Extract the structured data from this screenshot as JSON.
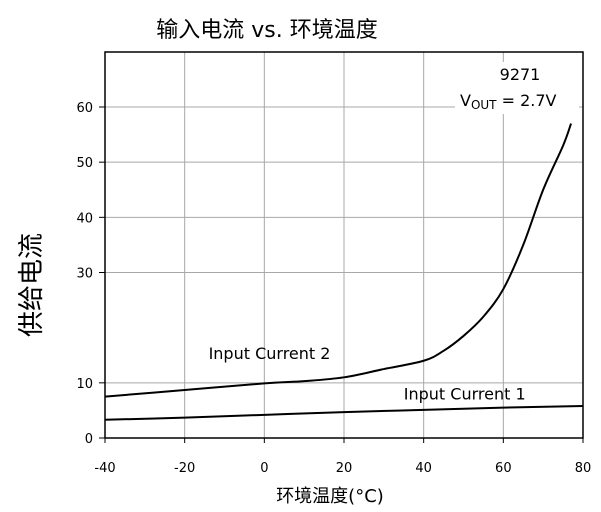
{
  "chart_data": {
    "type": "line",
    "title": "输入电流 vs. 环境温度",
    "xlabel": "环境温度(°C)",
    "ylabel": "供给电流",
    "xlim": [
      -40,
      80
    ],
    "ylim": [
      0,
      60
    ],
    "xticks": [
      "-40",
      "-20",
      "0",
      "20",
      "40",
      "60",
      "80"
    ],
    "yticks": [
      "0",
      "10",
      "30",
      "40",
      "50",
      "60"
    ],
    "grid": true,
    "annotation": {
      "line1": "9271",
      "line2_main": "V",
      "line2_sub": "OUT",
      "line2_rest": " = 2.7V"
    },
    "series": [
      {
        "name": "Input Current 2",
        "x": [
          -40,
          -20,
          0,
          10,
          20,
          30,
          40,
          45,
          50,
          55,
          60,
          65,
          70,
          75,
          77
        ],
        "y": [
          7.5,
          8.7,
          9.9,
          10.3,
          11,
          12.5,
          14,
          15.8,
          18.5,
          22,
          27,
          35,
          45,
          53,
          57
        ]
      },
      {
        "name": "Input Current 1",
        "x": [
          -40,
          -20,
          0,
          20,
          40,
          60,
          80
        ],
        "y": [
          3.3,
          3.7,
          4.2,
          4.7,
          5.1,
          5.5,
          5.8
        ]
      }
    ]
  }
}
